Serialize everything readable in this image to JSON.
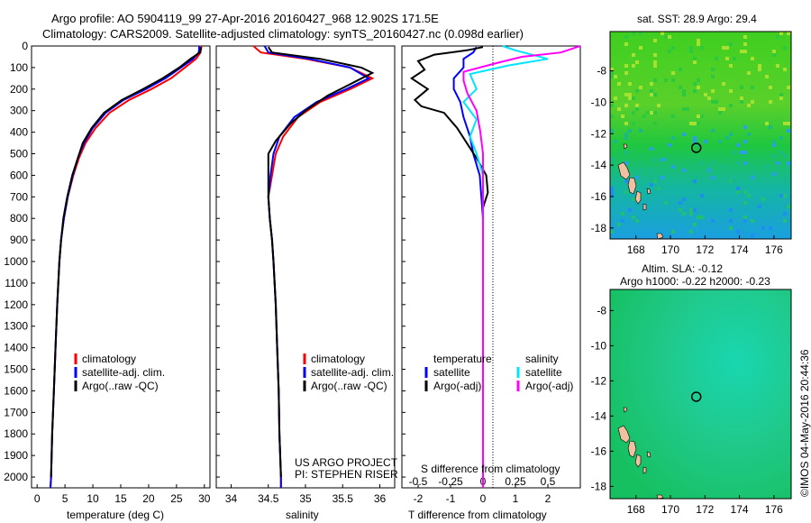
{
  "header": {
    "line1": "Argo profile: AO 5904119_99 27-Apr-2016 20160427_968 12.902S 171.5E",
    "line2": "Climatology: CARS2009. Satellite-adjusted climatology: synTS_20160427.nc (0.098d earlier)"
  },
  "colors": {
    "climatology": "#ff0000",
    "satellite": "#0000ff",
    "argo": "#000000",
    "cyan": "#00e5ff",
    "magenta": "#ff00ff"
  },
  "depth_axis": {
    "ticks": [
      0,
      100,
      200,
      300,
      400,
      500,
      600,
      700,
      800,
      900,
      1000,
      1100,
      1200,
      1300,
      1400,
      1500,
      1600,
      1700,
      1800,
      1900,
      2000
    ]
  },
  "panels": {
    "temperature": {
      "xlabel": "temperature (deg C)",
      "legend": [
        "climatology",
        "satellite-adj. clim.",
        "Argo(..raw -QC)"
      ]
    },
    "salinity": {
      "xlabel": "salinity",
      "legend": [
        "climatology",
        "satellite-adj. clim.",
        "Argo(..raw -QC)"
      ],
      "note1": "US ARGO PROJECT",
      "note2": "PI: STEPHEN RISER"
    },
    "difference": {
      "xlabel": "T difference from climatology",
      "toplabel": "S difference from climatology",
      "legend_t_title": "temperature",
      "legend_s_title": "salinity",
      "legend_t": [
        "satellite",
        "Argo(-adj)"
      ],
      "legend_s": [
        "satellite",
        "Argo(-adj)"
      ]
    },
    "sst_map": {
      "title": "sat. SST: 28.9 Argo: 29.4",
      "xticks": [
        "168",
        "170",
        "172",
        "174",
        "176"
      ],
      "yticks": [
        "-8",
        "-10",
        "-12",
        "-14",
        "-16",
        "-18"
      ]
    },
    "sla_map": {
      "title1": "Altim. SLA: -0.12",
      "title2": "Argo h1000: -0.22 h2000: -0.23",
      "xticks": [
        "168",
        "170",
        "172",
        "174",
        "176"
      ],
      "yticks": [
        "-8",
        "-10",
        "-12",
        "-14",
        "-16",
        "-18"
      ]
    }
  },
  "side_label": "©IMOS 04-May-2016 20:44:36",
  "chart_data": [
    {
      "type": "line",
      "panel": "temperature",
      "xlabel": "temperature (deg C)",
      "ylabel": "",
      "xlim": [
        -1,
        31
      ],
      "ylim": [
        2050,
        0
      ],
      "xticks": [
        0,
        5,
        10,
        15,
        20,
        25,
        30
      ],
      "series": [
        {
          "name": "climatology",
          "color": "#ff0000",
          "points": [
            [
              29.5,
              0
            ],
            [
              29.3,
              30
            ],
            [
              28.5,
              60
            ],
            [
              26.5,
              100
            ],
            [
              24,
              150
            ],
            [
              20.5,
              200
            ],
            [
              16.5,
              250
            ],
            [
              13,
              310
            ],
            [
              10.5,
              380
            ],
            [
              8.7,
              450
            ],
            [
              7.5,
              520
            ],
            [
              6.5,
              600
            ],
            [
              5.5,
              700
            ],
            [
              4.8,
              800
            ],
            [
              4.3,
              900
            ],
            [
              4,
              1000
            ],
            [
              3.6,
              1200
            ],
            [
              3.3,
              1400
            ],
            [
              3,
              1600
            ],
            [
              2.7,
              1800
            ],
            [
              2.5,
              2000
            ],
            [
              2.4,
              2050
            ]
          ]
        },
        {
          "name": "satellite-adj. clim.",
          "color": "#0000ff",
          "points": [
            [
              29.1,
              0
            ],
            [
              29,
              30
            ],
            [
              28,
              60
            ],
            [
              25.8,
              100
            ],
            [
              23,
              150
            ],
            [
              19.5,
              200
            ],
            [
              15.5,
              250
            ],
            [
              12.3,
              310
            ],
            [
              10,
              380
            ],
            [
              8.4,
              450
            ],
            [
              7.3,
              520
            ],
            [
              6.4,
              600
            ],
            [
              5.5,
              700
            ],
            [
              4.8,
              800
            ],
            [
              4.3,
              900
            ],
            [
              4,
              1000
            ],
            [
              3.6,
              1200
            ],
            [
              3.3,
              1400
            ],
            [
              3,
              1600
            ],
            [
              2.7,
              1800
            ],
            [
              2.5,
              2000
            ],
            [
              2.4,
              2050
            ]
          ]
        },
        {
          "name": "Argo(..raw -QC)",
          "color": "#000000",
          "points": [
            [
              29.4,
              5
            ],
            [
              29.2,
              30
            ],
            [
              27.5,
              60
            ],
            [
              25.5,
              100
            ],
            [
              22.5,
              150
            ],
            [
              19,
              200
            ],
            [
              15.2,
              250
            ],
            [
              12,
              310
            ],
            [
              9.8,
              380
            ],
            [
              8.2,
              450
            ],
            [
              7.3,
              520
            ],
            [
              6.3,
              600
            ],
            [
              5.4,
              700
            ],
            [
              4.7,
              800
            ],
            [
              4.3,
              900
            ],
            [
              4,
              1000
            ],
            [
              3.6,
              1200
            ],
            [
              3.3,
              1400
            ],
            [
              3,
              1600
            ],
            [
              2.7,
              1800
            ],
            [
              2.5,
              2000
            ]
          ]
        }
      ]
    },
    {
      "type": "line",
      "panel": "salinity",
      "xlabel": "salinity",
      "ylabel": "",
      "xlim": [
        33.8,
        36.2
      ],
      "ylim": [
        2050,
        0
      ],
      "xticks": [
        34,
        34.5,
        35,
        35.5,
        36
      ],
      "series": [
        {
          "name": "climatology",
          "color": "#ff0000",
          "points": [
            [
              34.3,
              0
            ],
            [
              34.4,
              30
            ],
            [
              35,
              60
            ],
            [
              35.6,
              100
            ],
            [
              35.9,
              150
            ],
            [
              35.6,
              200
            ],
            [
              35.2,
              260
            ],
            [
              34.9,
              330
            ],
            [
              34.7,
              420
            ],
            [
              34.6,
              500
            ],
            [
              34.55,
              600
            ],
            [
              34.5,
              700
            ],
            [
              34.52,
              800
            ],
            [
              34.55,
              900
            ],
            [
              34.57,
              1000
            ],
            [
              34.6,
              1200
            ],
            [
              34.62,
              1400
            ],
            [
              34.64,
              1600
            ],
            [
              34.65,
              1800
            ],
            [
              34.67,
              2000
            ],
            [
              34.67,
              2050
            ]
          ]
        },
        {
          "name": "satellite-adj. clim.",
          "color": "#0000ff",
          "points": [
            [
              34.45,
              0
            ],
            [
              34.5,
              30
            ],
            [
              35.05,
              60
            ],
            [
              35.6,
              100
            ],
            [
              35.85,
              150
            ],
            [
              35.55,
              200
            ],
            [
              35.15,
              260
            ],
            [
              34.85,
              330
            ],
            [
              34.65,
              420
            ],
            [
              34.57,
              500
            ],
            [
              34.53,
              600
            ],
            [
              34.5,
              700
            ],
            [
              34.52,
              800
            ],
            [
              34.55,
              900
            ],
            [
              34.57,
              1000
            ],
            [
              34.6,
              1200
            ],
            [
              34.62,
              1400
            ],
            [
              34.64,
              1600
            ],
            [
              34.65,
              1800
            ],
            [
              34.67,
              2000
            ],
            [
              34.67,
              2050
            ]
          ]
        },
        {
          "name": "Argo(..raw -QC)",
          "color": "#000000",
          "points": [
            [
              34.5,
              5
            ],
            [
              34.55,
              30
            ],
            [
              35.2,
              60
            ],
            [
              35.75,
              100
            ],
            [
              35.9,
              125
            ],
            [
              35.7,
              160
            ],
            [
              35.3,
              230
            ],
            [
              35,
              300
            ],
            [
              34.8,
              360
            ],
            [
              34.6,
              440
            ],
            [
              34.5,
              500
            ],
            [
              34.5,
              600
            ],
            [
              34.5,
              700
            ],
            [
              34.52,
              800
            ],
            [
              34.55,
              900
            ],
            [
              34.57,
              1000
            ],
            [
              34.6,
              1200
            ],
            [
              34.62,
              1400
            ],
            [
              34.64,
              1600
            ],
            [
              34.65,
              1800
            ],
            [
              34.67,
              2000
            ]
          ]
        }
      ]
    },
    {
      "type": "line",
      "panel": "difference",
      "xlabel": "T difference from climatology",
      "x2label": "S difference from climatology",
      "xlim": [
        -2.5,
        3
      ],
      "ylim": [
        2050,
        0
      ],
      "xticks": [
        -2,
        -1,
        0,
        1,
        2
      ],
      "x2ticks": [
        -0.5,
        -0.25,
        0,
        0.25,
        0.5
      ],
      "x2lim": [
        -0.625,
        0.75
      ],
      "series": [
        {
          "name": "temperature satellite",
          "axis": "T",
          "color": "#0000ff",
          "points": [
            [
              -0.2,
              5
            ],
            [
              -0.3,
              30
            ],
            [
              -0.6,
              60
            ],
            [
              -0.6,
              100
            ],
            [
              -0.9,
              150
            ],
            [
              -0.9,
              200
            ],
            [
              -0.7,
              260
            ],
            [
              -0.6,
              330
            ],
            [
              -0.4,
              420
            ],
            [
              -0.3,
              500
            ],
            [
              -0.1,
              600
            ],
            [
              0,
              800
            ],
            [
              0,
              2050
            ]
          ]
        },
        {
          "name": "temperature Argo(-adj)",
          "axis": "T",
          "color": "#000000",
          "points": [
            [
              0,
              5
            ],
            [
              -0.5,
              20
            ],
            [
              -1.5,
              40
            ],
            [
              -2,
              70
            ],
            [
              -1.8,
              110
            ],
            [
              -2.2,
              150
            ],
            [
              -1.7,
              200
            ],
            [
              -2.1,
              250
            ],
            [
              -1.9,
              280
            ],
            [
              -1.2,
              310
            ],
            [
              -0.8,
              380
            ],
            [
              -0.5,
              450
            ],
            [
              -0.2,
              520
            ],
            [
              0.1,
              600
            ],
            [
              0.15,
              680
            ],
            [
              0,
              750
            ],
            [
              0,
              2050
            ]
          ]
        },
        {
          "name": "salinity satellite",
          "axis": "S",
          "color": "#00e5ff",
          "points": [
            [
              0.15,
              0
            ],
            [
              0.25,
              20
            ],
            [
              0.5,
              60
            ],
            [
              0.2,
              90
            ],
            [
              -0.1,
              130
            ],
            [
              -0.05,
              200
            ],
            [
              -0.15,
              260
            ],
            [
              -0.05,
              340
            ],
            [
              -0.1,
              420
            ],
            [
              -0.05,
              500
            ],
            [
              0,
              600
            ],
            [
              0,
              2050
            ]
          ]
        },
        {
          "name": "salinity Argo(-adj)",
          "axis": "S",
          "color": "#ff00ff",
          "points": [
            [
              0.75,
              0
            ],
            [
              0.6,
              30
            ],
            [
              0.3,
              50
            ],
            [
              0.1,
              80
            ],
            [
              -0.15,
              120
            ],
            [
              -0.15,
              160
            ],
            [
              -0.12,
              220
            ],
            [
              -0.05,
              300
            ],
            [
              -0.02,
              400
            ],
            [
              0,
              500
            ],
            [
              0,
              700
            ],
            [
              0,
              2050
            ]
          ]
        }
      ]
    },
    {
      "type": "heatmap",
      "panel": "sst_map",
      "title": "sat. SST: 28.9 Argo: 29.4",
      "xlim": [
        166.5,
        177
      ],
      "ylim": [
        -18.7,
        -5.5
      ],
      "argo_position": [
        171.5,
        -12.902
      ]
    },
    {
      "type": "heatmap",
      "panel": "sla_map",
      "title": "Altim. SLA: -0.12",
      "xlim": [
        166.5,
        177
      ],
      "ylim": [
        -18.7,
        -6.8
      ],
      "argo_position": [
        171.5,
        -12.902
      ]
    }
  ]
}
